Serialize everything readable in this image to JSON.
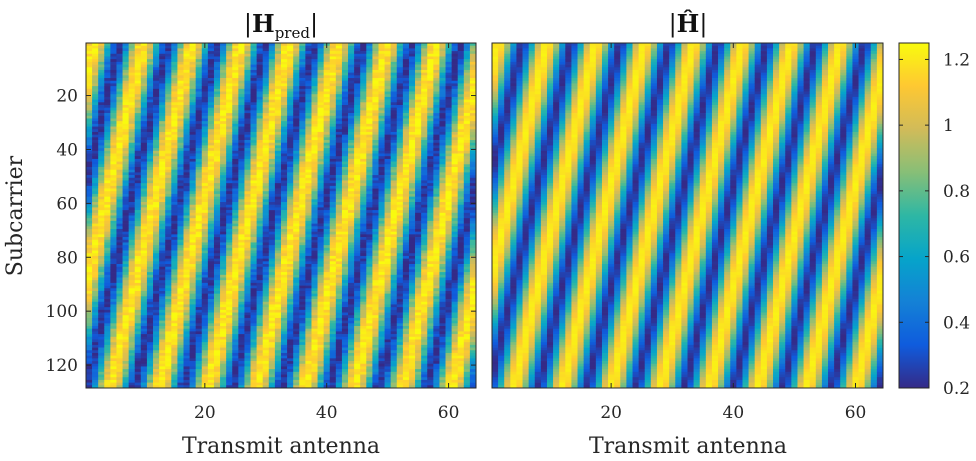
{
  "chart_data": [
    {
      "type": "heatmap",
      "title": "|H_pred|",
      "title_parts": {
        "bar_left": "|",
        "main": "H",
        "sub": "pred",
        "bar_right": "|"
      },
      "xlabel": "Transmit antenna",
      "ylabel": "Subcarrier",
      "xlim": [
        0.5,
        64.5
      ],
      "ylim": [
        128.5,
        0.5
      ],
      "xticks": [
        20,
        40,
        60
      ],
      "yticks": [
        20,
        40,
        60,
        80,
        100,
        120
      ],
      "n_cols": 64,
      "n_rows": 128,
      "pattern": {
        "period_antennas": 8.0,
        "diagonal_shift_per_subcarrier": 0.105,
        "noise": "moderate",
        "min": 0.2,
        "max": 1.22
      }
    },
    {
      "type": "heatmap",
      "title": "|Ĥ|",
      "title_parts": {
        "bar_left": "|",
        "main": "Ĥ",
        "bar_right": "|"
      },
      "xlabel": "Transmit antenna",
      "ylabel": "",
      "xlim": [
        0.5,
        64.5
      ],
      "ylim": [
        128.5,
        0.5
      ],
      "xticks": [
        20,
        40,
        60
      ],
      "n_cols": 64,
      "n_rows": 128,
      "pattern": {
        "period_antennas": 8.0,
        "diagonal_shift_per_subcarrier": 0.105,
        "noise": "low",
        "min": 0.2,
        "max": 1.22
      }
    }
  ],
  "colorbar": {
    "colormap": "parula",
    "min": 0.2,
    "max": 1.25,
    "ticks": [
      0.2,
      0.4,
      0.6,
      0.8,
      1,
      1.2
    ],
    "tick_labels": [
      "0.2",
      "0.4",
      "0.6",
      "0.8",
      "1",
      "1.2"
    ]
  },
  "colors": {
    "parula_stops": [
      "#352a87",
      "#0f5cdd",
      "#1481d6",
      "#06a4ca",
      "#2eb7a4",
      "#87bf77",
      "#d1bb59",
      "#fec832",
      "#f9fb0e"
    ],
    "axis": "#262626"
  }
}
